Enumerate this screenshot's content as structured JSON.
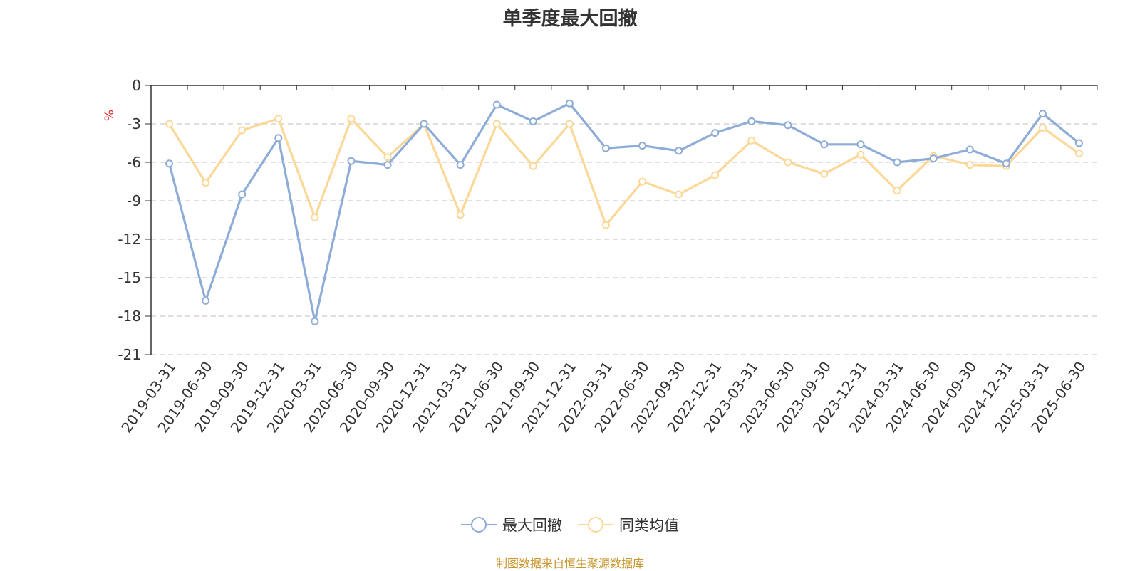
{
  "chart_data": {
    "type": "line",
    "title": "单季度最大回撤",
    "ylabel": "%",
    "ylim": [
      -21,
      0
    ],
    "yticks": [
      0,
      -3,
      -6,
      -9,
      -12,
      -15,
      -18,
      -21
    ],
    "grid": true,
    "legend_position": "bottom",
    "categories": [
      "2019-03-31",
      "2019-06-30",
      "2019-09-30",
      "2019-12-31",
      "2020-03-31",
      "2020-06-30",
      "2020-09-30",
      "2020-12-31",
      "2021-03-31",
      "2021-06-30",
      "2021-09-30",
      "2021-12-31",
      "2022-03-31",
      "2022-06-30",
      "2022-09-30",
      "2022-12-31",
      "2023-03-31",
      "2023-06-30",
      "2023-09-30",
      "2023-12-31",
      "2024-03-31",
      "2024-06-30",
      "2024-09-30",
      "2024-12-31",
      "2025-03-31",
      "2025-06-30"
    ],
    "series": [
      {
        "name": "最大回撤",
        "color": "#8eacd8",
        "values": [
          -6.1,
          -16.8,
          -8.5,
          -4.1,
          -18.4,
          -5.9,
          -6.2,
          -3.0,
          -6.2,
          -1.5,
          -2.8,
          -1.4,
          -4.9,
          -4.7,
          -5.1,
          -3.7,
          -2.8,
          -3.1,
          -4.6,
          -4.6,
          -6.0,
          -5.7,
          -5.0,
          -6.1,
          -2.2,
          -4.5
        ]
      },
      {
        "name": "同类均值",
        "color": "#fbd897",
        "values": [
          -3.0,
          -7.6,
          -3.5,
          -2.6,
          -10.3,
          -2.6,
          -5.6,
          -3.0,
          -10.1,
          -3.0,
          -6.3,
          -3.0,
          -10.9,
          -7.5,
          -8.5,
          -7.0,
          -4.3,
          -6.0,
          -6.9,
          -5.4,
          -8.2,
          -5.5,
          -6.2,
          -6.3,
          -3.3,
          -5.3
        ]
      }
    ],
    "source_note": "制图数据来自恒生聚源数据库"
  }
}
